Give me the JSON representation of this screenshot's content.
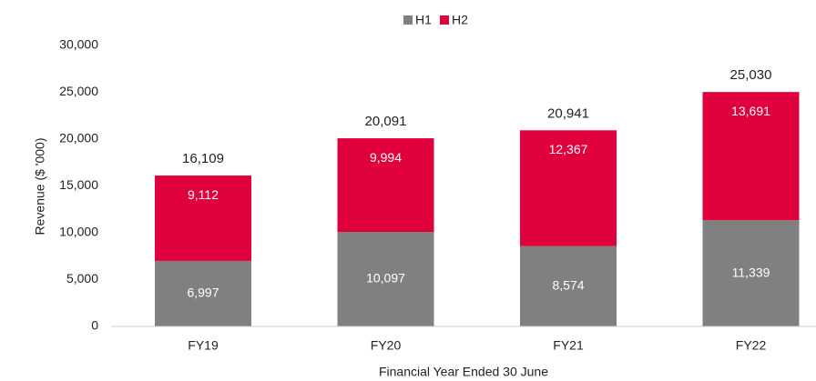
{
  "chart_data": {
    "type": "stacked_bar",
    "categories": [
      "FY19",
      "FY20",
      "FY21",
      "FY22"
    ],
    "series": [
      {
        "name": "H1",
        "color": "#808080",
        "values": [
          6997,
          10097,
          8574,
          11339
        ],
        "value_labels": [
          "6,997",
          "10,097",
          "8,574",
          "11,339"
        ]
      },
      {
        "name": "H2",
        "color": "#e0003c",
        "values": [
          9112,
          9994,
          12367,
          13691
        ],
        "value_labels": [
          "9,112",
          "9,994",
          "12,367",
          "13,691"
        ]
      }
    ],
    "totals": {
      "values": [
        16109,
        20091,
        20941,
        25030
      ],
      "value_labels": [
        "16,109",
        "20,091",
        "20,941",
        "25,030"
      ]
    },
    "ylabel": "Revenue ($ '000)",
    "xlabel": "Financial Year Ended 30 June",
    "ylim": [
      0,
      30000
    ],
    "yticks": [
      0,
      {
        "value": 5000,
        "label": "5,000"
      },
      {
        "value": 10000,
        "label": "10,000"
      },
      {
        "value": 15000,
        "label": "15,000"
      },
      {
        "value": 20000,
        "label": "20,000"
      },
      {
        "value": 25000,
        "label": "25,000"
      },
      {
        "value": 30000,
        "label": "30,000"
      }
    ],
    "legend": "top",
    "grid": false
  }
}
